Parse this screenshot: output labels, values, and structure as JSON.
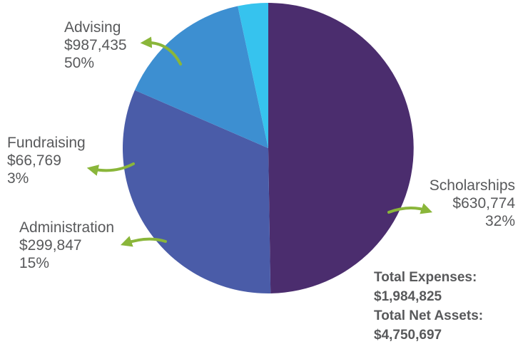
{
  "chart_data": {
    "type": "pie",
    "categories": [
      "Advising",
      "Scholarships",
      "Administration",
      "Fundraising"
    ],
    "values": [
      987435,
      630774,
      299847,
      66769
    ],
    "value_labels": [
      "$987,435",
      "$630,774",
      "$299,847",
      "$66,769"
    ],
    "percent_labels": [
      "50%",
      "32%",
      "15%",
      "3%"
    ],
    "colors": [
      "#4b2d6e",
      "#4a5ca8",
      "#3d8fd1",
      "#36c3ee"
    ],
    "start_angle_deg": 90,
    "direction": "clockwise",
    "arrow_color": "#8ab63a",
    "legend": "none"
  },
  "totals": {
    "expenses_label": "Total Expenses:",
    "expenses_value": "$1,984,825",
    "net_assets_label": "Total Net Assets:",
    "net_assets_value": "$4,750,697"
  }
}
